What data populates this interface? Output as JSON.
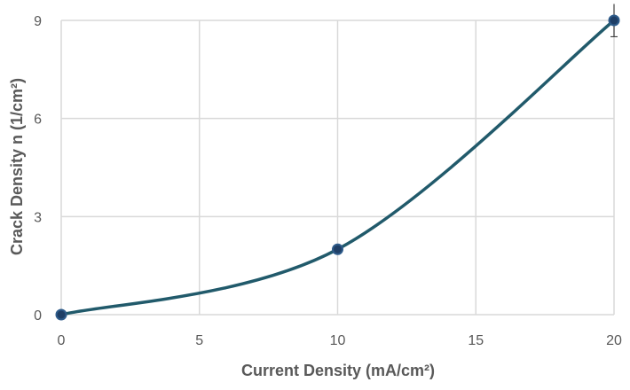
{
  "chart_data": {
    "type": "scatter",
    "title": "",
    "xlabel": "Current Density (mA/cm²)",
    "ylabel": "Crack Density n (1/cm²)",
    "xlim": [
      0,
      20
    ],
    "ylim": [
      0,
      9
    ],
    "x_ticks": [
      0,
      5,
      10,
      15,
      20
    ],
    "y_ticks": [
      0,
      3,
      6,
      9
    ],
    "x_tick_labels": [
      "0",
      "5",
      "10",
      "15",
      "20"
    ],
    "y_tick_labels": [
      "0",
      "3",
      "6",
      "9"
    ],
    "grid": "on",
    "legend": "none",
    "smooth_line": true,
    "series": [
      {
        "x": [
          0,
          10,
          20
        ],
        "y": [
          0,
          2,
          9
        ],
        "error_y": [
          0,
          0,
          0.5
        ]
      }
    ]
  },
  "colors": {
    "line": "#215a6b",
    "marker_fill": "#1f3f66",
    "marker_stroke": "#2e5b8a",
    "grid": "#d9d9d9",
    "text": "#595959"
  }
}
